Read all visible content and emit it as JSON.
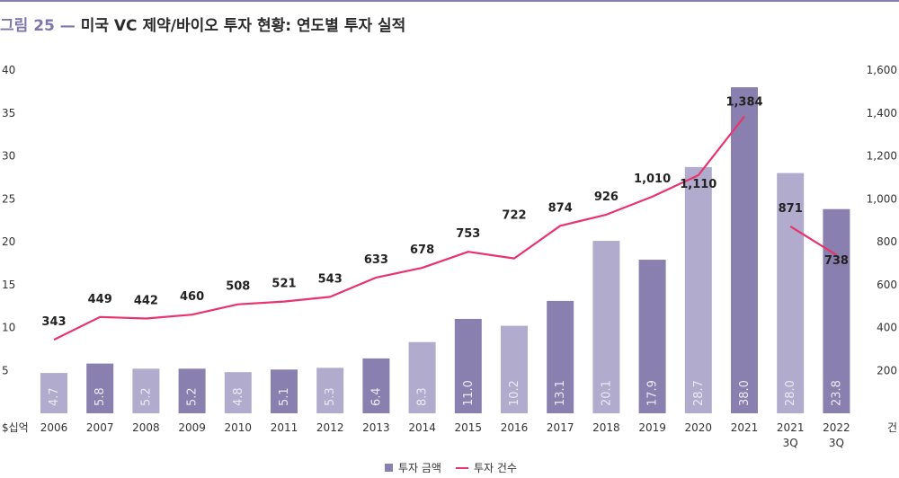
{
  "title": {
    "figure": "그림 25",
    "dash": "—",
    "text": "미국 VC 제약/바이오 투자 현황: 연도별 투자 실적"
  },
  "chart_data": {
    "type": "bar",
    "categories": [
      "2006",
      "2007",
      "2008",
      "2009",
      "2010",
      "2011",
      "2012",
      "2013",
      "2014",
      "2015",
      "2016",
      "2017",
      "2018",
      "2019",
      "2020",
      "2021",
      "2021\n3Q",
      "2022\n3Q"
    ],
    "series": [
      {
        "name": "투자 금액",
        "type": "bar",
        "axis": "left",
        "values": [
          4.7,
          5.8,
          5.2,
          5.2,
          4.8,
          5.1,
          5.3,
          6.4,
          8.3,
          11.0,
          10.2,
          13.1,
          20.1,
          17.9,
          28.7,
          38.0,
          28.0,
          23.8
        ],
        "labels": [
          "4.7",
          "5.8",
          "5.2",
          "5.2",
          "4.8",
          "5.1",
          "5.3",
          "6.4",
          "8.3",
          "11.0",
          "10.2",
          "13.1",
          "20.1",
          "17.9",
          "28.7",
          "38.0",
          "28.0",
          "23.8"
        ],
        "shade": [
          "light",
          "dark",
          "light",
          "dark",
          "light",
          "dark",
          "light",
          "dark",
          "light",
          "dark",
          "light",
          "dark",
          "light",
          "dark",
          "light",
          "dark",
          "light",
          "dark"
        ]
      },
      {
        "name": "투자 건수",
        "type": "line",
        "axis": "right",
        "values": [
          343,
          449,
          442,
          460,
          508,
          521,
          543,
          633,
          678,
          753,
          722,
          874,
          926,
          1010,
          1110,
          1384,
          871,
          738
        ],
        "labels": [
          "343",
          "449",
          "442",
          "460",
          "508",
          "521",
          "543",
          "633",
          "678",
          "753",
          "722",
          "874",
          "926",
          "1,010",
          "1,110",
          "1,384",
          "871",
          "738"
        ],
        "segments": [
          [
            0,
            15
          ],
          [
            16,
            17
          ]
        ]
      }
    ],
    "y_left": {
      "unit": "$십억",
      "ticks": [
        "40",
        "35",
        "30",
        "25",
        "20",
        "15",
        "10",
        "5"
      ],
      "ylim": [
        0,
        40
      ]
    },
    "y_right": {
      "unit": "건",
      "ticks": [
        "1,600",
        "1,400",
        "1,200",
        "1,000",
        "800",
        "600",
        "400",
        "200"
      ],
      "ylim": [
        0,
        1600
      ]
    },
    "legend_position": "bottom-center",
    "grid": false,
    "colors": {
      "bar_dark": "#8a80b0",
      "bar_light": "#b1abcd",
      "line": "#e8336d",
      "bar_label": "#ece9f5"
    }
  },
  "legend": {
    "bar": "투자 금액",
    "line": "투자 건수"
  }
}
